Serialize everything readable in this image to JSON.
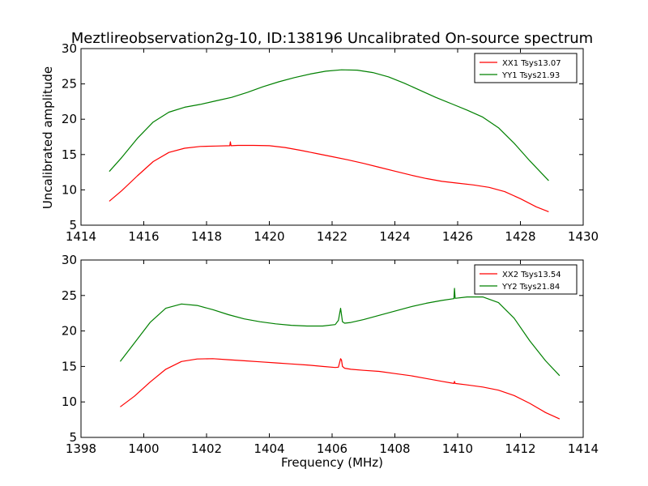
{
  "chart_data": [
    {
      "type": "line",
      "title": "Meztlireobservation2g-10, ID:138196 Uncalibrated On-source spectrum",
      "xlabel": "",
      "ylabel": "Uncalibrated amplitude",
      "xlim": [
        1414,
        1430
      ],
      "ylim": [
        5,
        30
      ],
      "xticks": [
        "1414",
        "1416",
        "1418",
        "1420",
        "1422",
        "1424",
        "1426",
        "1428",
        "1430"
      ],
      "yticks": [
        "5",
        "10",
        "15",
        "20",
        "25",
        "30"
      ],
      "legend_position": "top-right",
      "series": [
        {
          "name": "XX1 Tsys13.07",
          "color": "#ff0000",
          "x": [
            1414.9,
            1415.3,
            1415.8,
            1416.3,
            1416.8,
            1417.3,
            1417.8,
            1418.3,
            1418.74,
            1418.76,
            1418.78,
            1419.0,
            1419.5,
            1420.0,
            1420.5,
            1421.0,
            1421.5,
            1422.0,
            1422.5,
            1423.0,
            1423.5,
            1424.0,
            1424.5,
            1425.0,
            1425.5,
            1426.0,
            1426.5,
            1427.0,
            1427.5,
            1428.0,
            1428.5,
            1428.9
          ],
          "y": [
            8.4,
            9.9,
            12.0,
            14.0,
            15.3,
            15.9,
            16.15,
            16.2,
            16.25,
            16.8,
            16.25,
            16.3,
            16.3,
            16.25,
            16.0,
            15.6,
            15.15,
            14.7,
            14.25,
            13.75,
            13.2,
            12.65,
            12.1,
            11.6,
            11.2,
            10.95,
            10.7,
            10.35,
            9.75,
            8.75,
            7.6,
            6.9
          ]
        },
        {
          "name": "YY1 Tsys21.93",
          "color": "#008000",
          "x": [
            1414.9,
            1415.3,
            1415.8,
            1416.3,
            1416.8,
            1417.3,
            1417.8,
            1418.3,
            1418.8,
            1419.3,
            1419.8,
            1420.3,
            1420.8,
            1421.3,
            1421.8,
            1422.3,
            1422.8,
            1423.3,
            1423.8,
            1424.3,
            1424.8,
            1425.3,
            1425.8,
            1426.3,
            1426.8,
            1427.3,
            1427.8,
            1428.3,
            1428.9
          ],
          "y": [
            12.6,
            14.6,
            17.3,
            19.6,
            21.0,
            21.7,
            22.1,
            22.6,
            23.1,
            23.8,
            24.6,
            25.3,
            25.9,
            26.4,
            26.8,
            27.0,
            26.95,
            26.6,
            26.0,
            25.1,
            24.1,
            23.1,
            22.2,
            21.3,
            20.3,
            18.8,
            16.6,
            14.1,
            11.3
          ]
        }
      ]
    },
    {
      "type": "line",
      "title": "",
      "xlabel": "Frequency (MHz)",
      "ylabel": "",
      "xlim": [
        1398,
        1414
      ],
      "ylim": [
        5,
        30
      ],
      "xticks": [
        "1398",
        "1400",
        "1402",
        "1404",
        "1406",
        "1408",
        "1410",
        "1412",
        "1414"
      ],
      "yticks": [
        "5",
        "10",
        "15",
        "20",
        "25",
        "30"
      ],
      "legend_position": "top-right",
      "series": [
        {
          "name": "XX2 Tsys13.54",
          "color": "#ff0000",
          "x": [
            1399.25,
            1399.7,
            1400.2,
            1400.7,
            1401.2,
            1401.7,
            1402.2,
            1402.7,
            1403.2,
            1403.7,
            1404.2,
            1404.7,
            1405.2,
            1405.7,
            1406.1,
            1406.2,
            1406.27,
            1406.3,
            1406.33,
            1406.4,
            1406.6,
            1407.0,
            1407.5,
            1408.0,
            1408.5,
            1409.0,
            1409.5,
            1409.88,
            1409.9,
            1409.92,
            1410.3,
            1410.8,
            1411.3,
            1411.8,
            1412.3,
            1412.8,
            1413.25
          ],
          "y": [
            9.3,
            10.8,
            12.8,
            14.6,
            15.7,
            16.05,
            16.1,
            15.95,
            15.8,
            15.65,
            15.5,
            15.35,
            15.2,
            15.0,
            14.85,
            14.9,
            16.1,
            15.9,
            15.0,
            14.75,
            14.6,
            14.45,
            14.3,
            14.0,
            13.7,
            13.3,
            12.9,
            12.6,
            12.9,
            12.6,
            12.4,
            12.1,
            11.65,
            10.9,
            9.8,
            8.5,
            7.6
          ]
        },
        {
          "name": "YY2 Tsys21.84",
          "color": "#008000",
          "x": [
            1399.25,
            1399.7,
            1400.2,
            1400.7,
            1401.2,
            1401.7,
            1402.2,
            1402.7,
            1403.2,
            1403.7,
            1404.2,
            1404.7,
            1405.2,
            1405.7,
            1406.1,
            1406.2,
            1406.27,
            1406.3,
            1406.33,
            1406.4,
            1406.6,
            1407.0,
            1407.5,
            1408.0,
            1408.5,
            1409.0,
            1409.5,
            1409.88,
            1409.9,
            1409.92,
            1410.3,
            1410.8,
            1411.3,
            1411.8,
            1412.3,
            1412.8,
            1413.25
          ],
          "y": [
            15.7,
            18.3,
            21.2,
            23.2,
            23.8,
            23.6,
            23.0,
            22.3,
            21.7,
            21.3,
            21.0,
            20.8,
            20.7,
            20.7,
            20.9,
            21.5,
            23.2,
            22.3,
            21.3,
            21.1,
            21.2,
            21.6,
            22.2,
            22.8,
            23.4,
            23.9,
            24.3,
            24.55,
            26.0,
            24.6,
            24.8,
            24.8,
            24.0,
            21.8,
            18.6,
            15.8,
            13.7
          ]
        }
      ]
    }
  ]
}
